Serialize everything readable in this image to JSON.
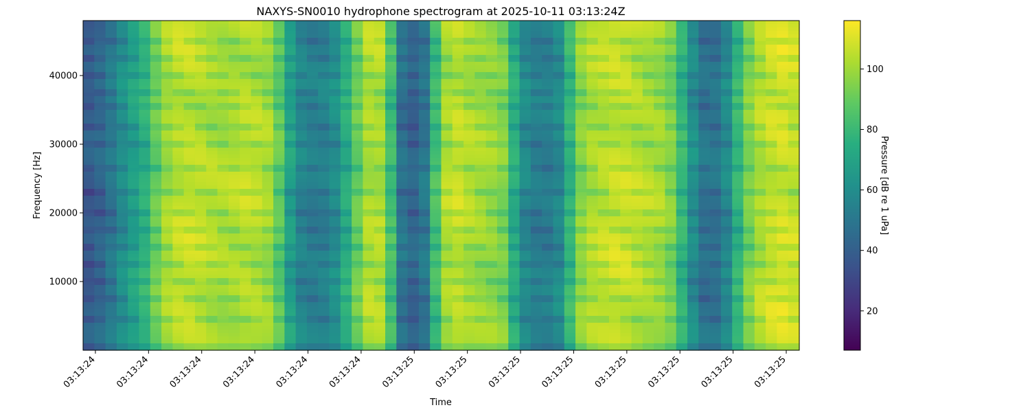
{
  "chart_data": {
    "type": "heatmap",
    "title": "NAXYS-SN0010 hydrophone spectrogram at 2025-10-11 03:13:24Z",
    "xlabel": "Time",
    "ylabel": "Frequency [Hz]",
    "ylim": [
      0,
      48000
    ],
    "y_ticks": [
      10000,
      20000,
      30000,
      40000
    ],
    "y_tick_labels": [
      "10000",
      "20000",
      "30000",
      "40000"
    ],
    "x_tick_labels": [
      "03:13:24",
      "03:13:24",
      "03:13:24",
      "03:13:24",
      "03:13:24",
      "03:13:24",
      "03:13:25",
      "03:13:25",
      "03:13:25",
      "03:13:25",
      "03:13:25",
      "03:13:25",
      "03:13:25",
      "03:13:25"
    ],
    "colormap": "viridis",
    "colorbar": {
      "label": "Pressure [dB re 1 uPa]",
      "range": [
        7,
        116
      ],
      "ticks": [
        20,
        40,
        60,
        80,
        100
      ],
      "tick_labels": [
        "20",
        "40",
        "60",
        "80",
        "100"
      ]
    },
    "time_columns": 64,
    "column_level_db": [
      40,
      44,
      52,
      62,
      70,
      78,
      92,
      102,
      106,
      107,
      106,
      104,
      103,
      104,
      106,
      105,
      102,
      90,
      70,
      58,
      55,
      56,
      62,
      76,
      92,
      104,
      104,
      84,
      50,
      44,
      52,
      84,
      104,
      107,
      104,
      102,
      100,
      96,
      76,
      60,
      55,
      55,
      60,
      80,
      98,
      104,
      106,
      108,
      108,
      106,
      104,
      102,
      96,
      80,
      62,
      50,
      50,
      60,
      80,
      96,
      104,
      108,
      110,
      108
    ],
    "ridge_frequencies_hz": [
      4500,
      7500,
      10000,
      12500,
      15000,
      17500,
      20000,
      23000,
      26500,
      30000,
      32500,
      35500,
      37500,
      40000,
      42500,
      45000
    ]
  }
}
